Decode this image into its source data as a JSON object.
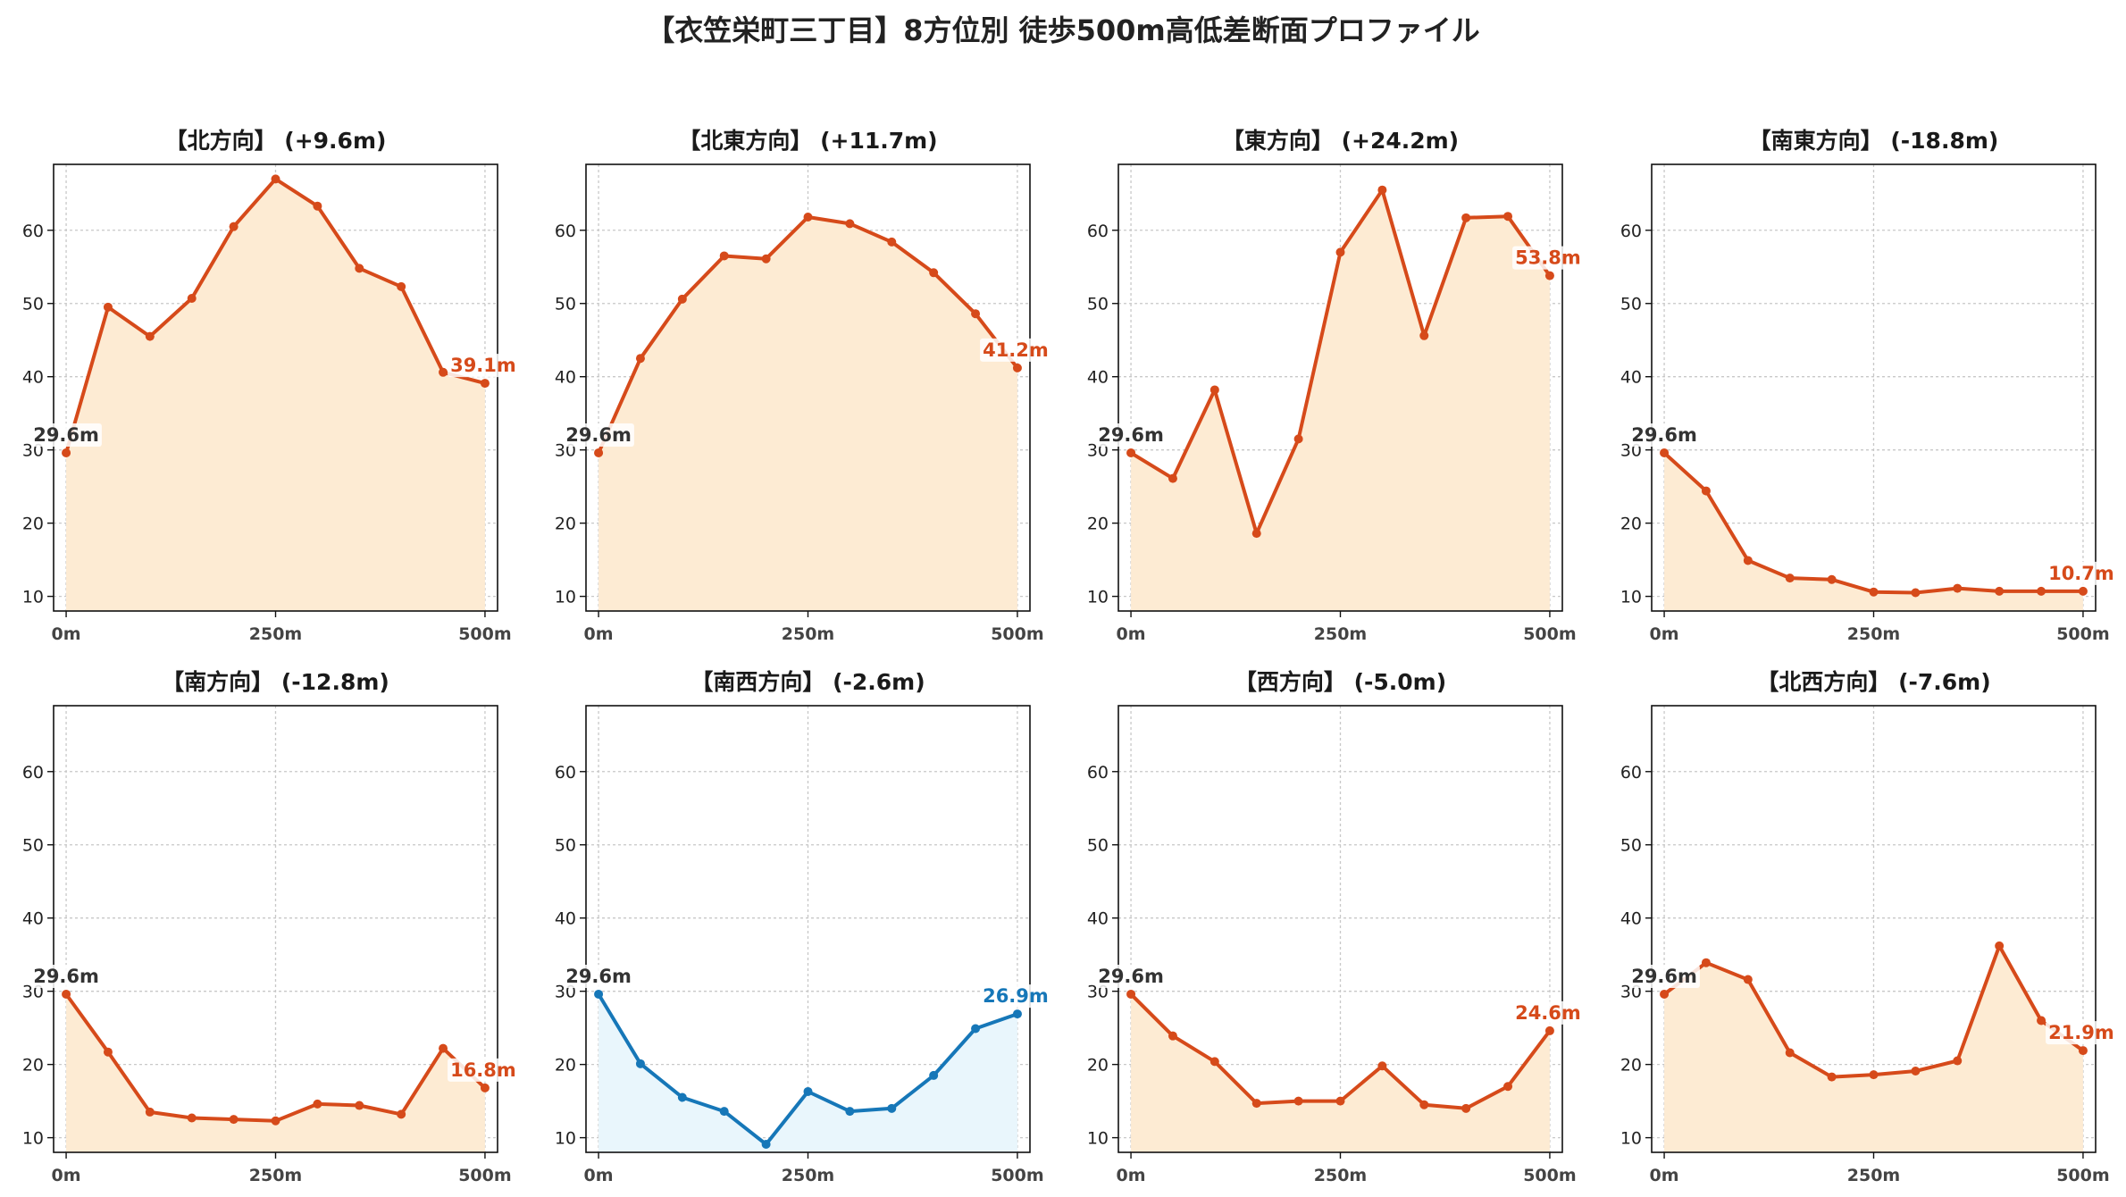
{
  "chart_data": {
    "type": "line",
    "title": "【衣笠栄町三丁目】8方位別 徒歩500m高低差断面プロファイル",
    "x": [
      0,
      50,
      100,
      150,
      200,
      250,
      300,
      350,
      400,
      450,
      500
    ],
    "xticks": [
      0,
      250,
      500
    ],
    "xtick_labels": [
      "0m",
      "250m",
      "500m"
    ],
    "yticks": [
      10,
      20,
      30,
      40,
      50,
      60
    ],
    "ylim": [
      8,
      69
    ],
    "xlim": [
      -15,
      515
    ],
    "grid": true,
    "panels": [
      {
        "label": "【北方向】 (+9.6m)",
        "color": "#d64a1a",
        "fill": "#fdebd3",
        "values": [
          29.6,
          49.5,
          45.5,
          50.7,
          60.5,
          67.0,
          63.3,
          54.8,
          52.3,
          40.6,
          39.1
        ],
        "start_label": "29.6m",
        "end_label": "39.1m"
      },
      {
        "label": "【北東方向】 (+11.7m)",
        "color": "#d64a1a",
        "fill": "#fdebd3",
        "values": [
          29.6,
          42.5,
          50.6,
          56.5,
          56.1,
          61.8,
          60.9,
          58.4,
          54.2,
          48.6,
          41.2
        ],
        "start_label": "29.6m",
        "end_label": "41.2m"
      },
      {
        "label": "【東方向】 (+24.2m)",
        "color": "#d64a1a",
        "fill": "#fdebd3",
        "values": [
          29.6,
          26.1,
          38.2,
          18.6,
          31.5,
          57.0,
          65.5,
          45.6,
          61.7,
          61.9,
          53.8
        ],
        "start_label": "29.6m",
        "end_label": "53.8m"
      },
      {
        "label": "【南東方向】 (-18.8m)",
        "color": "#d64a1a",
        "fill": "#fdebd3",
        "values": [
          29.6,
          24.4,
          14.9,
          12.5,
          12.3,
          10.6,
          10.5,
          11.1,
          10.7,
          10.7,
          10.7
        ],
        "start_label": "29.6m",
        "end_label": "10.7m"
      },
      {
        "label": "【南方向】 (-12.8m)",
        "color": "#d64a1a",
        "fill": "#fdebd3",
        "values": [
          29.6,
          21.7,
          13.5,
          12.7,
          12.5,
          12.3,
          14.6,
          14.4,
          13.2,
          22.2,
          16.8
        ],
        "start_label": "29.6m",
        "end_label": "16.8m"
      },
      {
        "label": "【南西方向】 (-2.6m)",
        "color": "#1677b8",
        "fill": "#e9f6fc",
        "values": [
          29.6,
          20.1,
          15.5,
          13.6,
          9.1,
          16.3,
          13.6,
          14.0,
          18.5,
          24.9,
          26.9
        ],
        "start_label": "29.6m",
        "end_label": "26.9m"
      },
      {
        "label": "【西方向】 (-5.0m)",
        "color": "#d64a1a",
        "fill": "#fdebd3",
        "values": [
          29.6,
          23.9,
          20.4,
          14.7,
          15.0,
          15.0,
          19.8,
          14.5,
          14.0,
          17.0,
          24.6
        ],
        "start_label": "29.6m",
        "end_label": "24.6m"
      },
      {
        "label": "【北西方向】 (-7.6m)",
        "color": "#d64a1a",
        "fill": "#fdebd3",
        "values": [
          29.6,
          33.9,
          31.6,
          21.6,
          18.3,
          18.6,
          19.1,
          20.5,
          36.2,
          26.0,
          21.9
        ],
        "start_label": "29.6m",
        "end_label": "21.9m"
      }
    ]
  }
}
